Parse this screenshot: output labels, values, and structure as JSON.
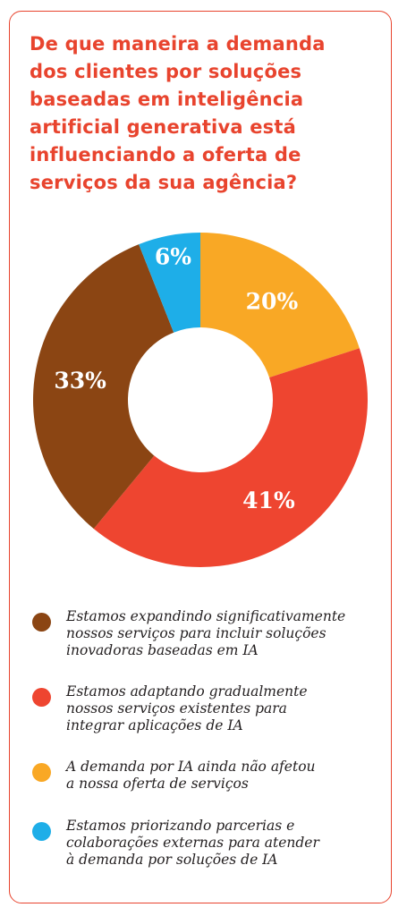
{
  "title_lines": [
    "De que maneira a demanda",
    "dos clientes por soluções",
    "baseadas em inteligência",
    "artificial generativa está",
    "influenciando a oferta de",
    "serviços da sua agência?"
  ],
  "colors": {
    "border": "#e8442e",
    "title": "#e8442e",
    "legend_text": "#231f20"
  },
  "chart_data": {
    "type": "donut",
    "title": "De que maneira a demanda dos clientes por soluções baseadas em inteligência artificial generativa está influenciando a oferta de serviços da sua agência?",
    "unit": "%",
    "slices": [
      {
        "label_lines": [
          "Estamos expandindo significativamente",
          "nossos serviços para incluir soluções",
          "inovadoras baseadas em IA"
        ],
        "value": 33,
        "display": "33%",
        "color": "#8b4513"
      },
      {
        "label_lines": [
          "Estamos adaptando gradualmente",
          "nossos serviços existentes para",
          "integrar aplicações de IA"
        ],
        "value": 41,
        "display": "41%",
        "color": "#ee4530"
      },
      {
        "label_lines": [
          "A demanda por IA ainda não afetou",
          "a nossa oferta de serviços"
        ],
        "value": 20,
        "display": "20%",
        "color": "#f9a825"
      },
      {
        "label_lines": [
          "Estamos priorizando parcerias e",
          "colaborações externas para atender",
          "à demanda por soluções de IA"
        ],
        "value": 6,
        "display": "6%",
        "color": "#1eaee8"
      }
    ],
    "slice_order_clockwise_from_top": [
      2,
      1,
      0,
      3
    ],
    "legend_placement": "bottom"
  }
}
